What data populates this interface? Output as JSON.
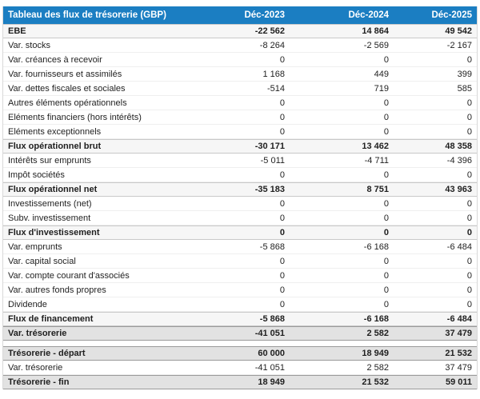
{
  "table": {
    "header": {
      "title": "Tableau des flux de trésorerie (GBP)",
      "columns": [
        "Déc-2023",
        "Déc-2024",
        "Déc-2025"
      ]
    },
    "rows": [
      {
        "label": "EBE",
        "values": [
          "-22 562",
          "14 864",
          "49 542"
        ],
        "style": "subtotal"
      },
      {
        "label": "Var. stocks",
        "values": [
          "-8 264",
          "-2 569",
          "-2 167"
        ],
        "style": "normal"
      },
      {
        "label": "Var. créances à recevoir",
        "values": [
          "0",
          "0",
          "0"
        ],
        "style": "normal"
      },
      {
        "label": "Var. fournisseurs et assimilés",
        "values": [
          "1 168",
          "449",
          "399"
        ],
        "style": "normal"
      },
      {
        "label": "Var. dettes fiscales et sociales",
        "values": [
          "-514",
          "719",
          "585"
        ],
        "style": "normal"
      },
      {
        "label": "Autres éléments opérationnels",
        "values": [
          "0",
          "0",
          "0"
        ],
        "style": "normal"
      },
      {
        "label": "Eléments financiers (hors intérêts)",
        "values": [
          "0",
          "0",
          "0"
        ],
        "style": "normal"
      },
      {
        "label": "Eléments exceptionnels",
        "values": [
          "0",
          "0",
          "0"
        ],
        "style": "normal"
      },
      {
        "label": "Flux opérationnel brut",
        "values": [
          "-30 171",
          "13 462",
          "48 358"
        ],
        "style": "subtotal"
      },
      {
        "label": "Intérêts sur emprunts",
        "values": [
          "-5 011",
          "-4 711",
          "-4 396"
        ],
        "style": "normal"
      },
      {
        "label": "Impôt sociétés",
        "values": [
          "0",
          "0",
          "0"
        ],
        "style": "normal"
      },
      {
        "label": "Flux opérationnel net",
        "values": [
          "-35 183",
          "8 751",
          "43 963"
        ],
        "style": "subtotal"
      },
      {
        "label": "Investissements (net)",
        "values": [
          "0",
          "0",
          "0"
        ],
        "style": "normal"
      },
      {
        "label": "Subv. investissement",
        "values": [
          "0",
          "0",
          "0"
        ],
        "style": "normal"
      },
      {
        "label": "Flux d'investissement",
        "values": [
          "0",
          "0",
          "0"
        ],
        "style": "subtotal"
      },
      {
        "label": "Var. emprunts",
        "values": [
          "-5 868",
          "-6 168",
          "-6 484"
        ],
        "style": "normal"
      },
      {
        "label": "Var. capital social",
        "values": [
          "0",
          "0",
          "0"
        ],
        "style": "normal"
      },
      {
        "label": "Var. compte courant d'associés",
        "values": [
          "0",
          "0",
          "0"
        ],
        "style": "normal"
      },
      {
        "label": "Var. autres fonds propres",
        "values": [
          "0",
          "0",
          "0"
        ],
        "style": "normal"
      },
      {
        "label": "Dividende",
        "values": [
          "0",
          "0",
          "0"
        ],
        "style": "normal"
      },
      {
        "label": "Flux de financement",
        "values": [
          "-5 868",
          "-6 168",
          "-6 484"
        ],
        "style": "subtotal"
      },
      {
        "label": "Var. trésorerie",
        "values": [
          "-41 051",
          "2 582",
          "37 479"
        ],
        "style": "total"
      },
      {
        "label": "",
        "values": [],
        "style": "spacer"
      },
      {
        "label": "Trésorerie - départ",
        "values": [
          "60 000",
          "18 949",
          "21 532"
        ],
        "style": "total"
      },
      {
        "label": "Var. trésorerie",
        "values": [
          "-41 051",
          "2 582",
          "37 479"
        ],
        "style": "normal"
      },
      {
        "label": "Trésorerie - fin",
        "values": [
          "18 949",
          "21 532",
          "59 011"
        ],
        "style": "total"
      }
    ],
    "colors": {
      "header_bg": "#1b7ec2",
      "header_text": "#ffffff",
      "subtotal_bg": "#f6f6f6",
      "total_bg": "#e2e2e2",
      "body_text": "#1f1f1f"
    }
  }
}
